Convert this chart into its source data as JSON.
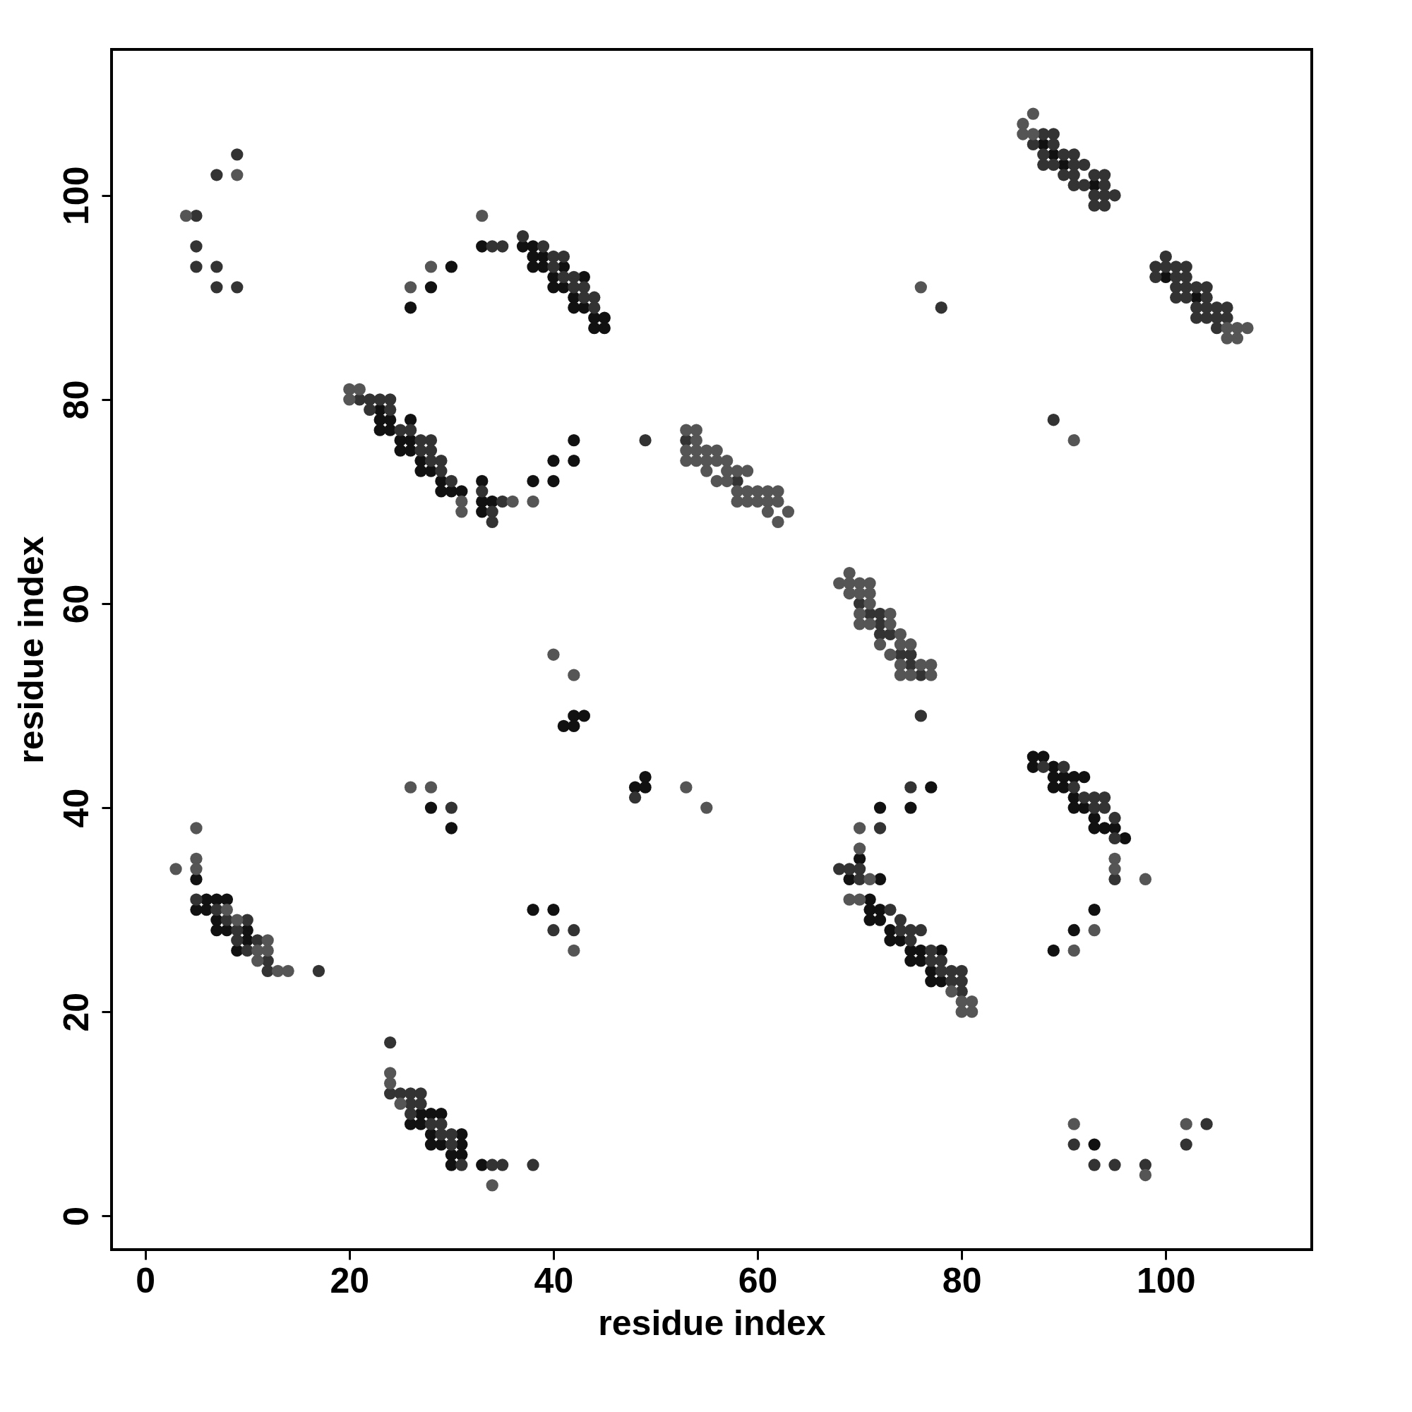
{
  "chart_data": {
    "type": "scatter",
    "xlabel": "residue index",
    "ylabel": "residue index",
    "xlim": [
      -3.3,
      114.3
    ],
    "ylim": [
      -3.3,
      114.3
    ],
    "xticks": [
      0,
      20,
      40,
      60,
      80,
      100
    ],
    "yticks": [
      0,
      20,
      40,
      60,
      80,
      100
    ],
    "grid": false,
    "marker": "circle",
    "series": [
      {
        "color": "#111111",
        "x": [
          26,
          28,
          30,
          33,
          37,
          38,
          38,
          38,
          39,
          39,
          40,
          40,
          41,
          41,
          42,
          42,
          43,
          43,
          44,
          44,
          45,
          45,
          23,
          23,
          23,
          24,
          24,
          25,
          25,
          26,
          26,
          26,
          27,
          27,
          28,
          29,
          29,
          30,
          31,
          33,
          33,
          33,
          34,
          38,
          40,
          40,
          42,
          42,
          88,
          89,
          90,
          93,
          100,
          103,
          41,
          42,
          42,
          43,
          28,
          30,
          48,
          49,
          49,
          72,
          75,
          77,
          70,
          69,
          72,
          71,
          71,
          71,
          72,
          72,
          73,
          73,
          74,
          75,
          75,
          76,
          76,
          77,
          77,
          78,
          78,
          87,
          87,
          88,
          89,
          89,
          89,
          90,
          90,
          91,
          91,
          91,
          92,
          92,
          93,
          93,
          94,
          95,
          96,
          93,
          91,
          89,
          93,
          5,
          5,
          6,
          6,
          7,
          7,
          7,
          8,
          8,
          9,
          10,
          10,
          38,
          40,
          26,
          27,
          27,
          28,
          28,
          28,
          29,
          29,
          30,
          30,
          31,
          31,
          31,
          33
        ],
        "values": [
          89,
          91,
          93,
          95,
          95,
          95,
          94,
          93,
          94,
          93,
          92,
          91,
          93,
          91,
          90,
          89,
          92,
          89,
          88,
          87,
          88,
          87,
          79,
          78,
          77,
          78,
          77,
          76,
          75,
          78,
          76,
          75,
          74,
          73,
          73,
          72,
          71,
          71,
          71,
          72,
          70,
          69,
          70,
          72,
          74,
          72,
          76,
          74,
          105,
          104,
          103,
          101,
          92,
          90,
          48,
          49,
          48,
          49,
          40,
          38,
          42,
          43,
          42,
          40,
          40,
          42,
          35,
          33,
          33,
          31,
          30,
          29,
          30,
          29,
          28,
          27,
          27,
          26,
          25,
          26,
          25,
          24,
          23,
          26,
          23,
          45,
          44,
          45,
          44,
          43,
          42,
          43,
          42,
          43,
          41,
          40,
          43,
          40,
          39,
          38,
          38,
          38,
          37,
          30,
          28,
          26,
          7,
          33,
          30,
          31,
          30,
          31,
          29,
          28,
          31,
          28,
          26,
          28,
          27,
          30,
          30,
          9,
          10,
          9,
          10,
          8,
          7,
          10,
          7,
          6,
          5,
          8,
          7,
          6,
          5
        ]
      },
      {
        "color": "#333333",
        "x": [
          5,
          5,
          5,
          7,
          7,
          7,
          9,
          9,
          34,
          35,
          37,
          39,
          40,
          40,
          41,
          41,
          42,
          42,
          43,
          43,
          44,
          44,
          21,
          22,
          22,
          23,
          24,
          24,
          25,
          26,
          27,
          27,
          28,
          28,
          28,
          29,
          29,
          30,
          33,
          34,
          34,
          35,
          49,
          53,
          58,
          87,
          88,
          88,
          88,
          89,
          89,
          89,
          90,
          90,
          91,
          91,
          91,
          91,
          92,
          92,
          93,
          93,
          93,
          94,
          94,
          94,
          94,
          95,
          99,
          99,
          100,
          100,
          101,
          101,
          101,
          101,
          102,
          102,
          102,
          102,
          103,
          103,
          103,
          104,
          104,
          104,
          104,
          105,
          105,
          105,
          106,
          106,
          78,
          89,
          70,
          71,
          72,
          72,
          72,
          73,
          74,
          75,
          75,
          76,
          76,
          30,
          48,
          72,
          75,
          68,
          69,
          70,
          70,
          73,
          74,
          74,
          75,
          75,
          76,
          77,
          77,
          78,
          78,
          79,
          79,
          80,
          80,
          80,
          88,
          90,
          91,
          92,
          93,
          93,
          94,
          94,
          95,
          95,
          95,
          91,
          93,
          95,
          98,
          102,
          104,
          5,
          7,
          8,
          9,
          9,
          10,
          10,
          11,
          12,
          12,
          17,
          40,
          42,
          24,
          24,
          25,
          26,
          26,
          26,
          27,
          27,
          28,
          29,
          29,
          30,
          30,
          31,
          34,
          35,
          38
        ],
        "values": [
          98,
          95,
          93,
          102,
          93,
          91,
          104,
          91,
          95,
          95,
          96,
          95,
          94,
          93,
          94,
          92,
          92,
          91,
          91,
          90,
          90,
          89,
          80,
          80,
          79,
          80,
          80,
          79,
          77,
          77,
          76,
          75,
          76,
          75,
          74,
          74,
          73,
          72,
          71,
          69,
          68,
          70,
          76,
          76,
          72,
          105,
          106,
          104,
          103,
          106,
          105,
          103,
          104,
          102,
          104,
          103,
          102,
          101,
          103,
          101,
          102,
          100,
          99,
          102,
          101,
          100,
          99,
          100,
          93,
          92,
          94,
          93,
          93,
          92,
          91,
          90,
          93,
          92,
          91,
          90,
          91,
          89,
          88,
          91,
          90,
          89,
          88,
          89,
          88,
          87,
          89,
          88,
          89,
          78,
          60,
          59,
          59,
          58,
          57,
          57,
          55,
          55,
          54,
          53,
          49,
          40,
          41,
          38,
          42,
          34,
          34,
          34,
          33,
          30,
          29,
          28,
          28,
          27,
          28,
          26,
          25,
          25,
          24,
          24,
          23,
          24,
          23,
          22,
          44,
          44,
          42,
          41,
          41,
          40,
          41,
          40,
          39,
          37,
          33,
          7,
          5,
          5,
          5,
          7,
          9,
          31,
          30,
          29,
          28,
          27,
          29,
          26,
          27,
          25,
          24,
          24,
          28,
          28,
          17,
          12,
          12,
          12,
          11,
          10,
          12,
          11,
          9,
          9,
          8,
          8,
          7,
          5,
          5,
          5,
          5
        ]
      },
      {
        "color": "#555555",
        "x": [
          4,
          9,
          26,
          28,
          33,
          20,
          20,
          21,
          31,
          31,
          36,
          38,
          53,
          53,
          53,
          54,
          54,
          54,
          54,
          55,
          55,
          55,
          56,
          56,
          56,
          57,
          57,
          57,
          58,
          58,
          58,
          59,
          59,
          59,
          60,
          60,
          61,
          61,
          61,
          62,
          62,
          62,
          63,
          86,
          86,
          87,
          87,
          106,
          106,
          107,
          107,
          108,
          76,
          91,
          68,
          69,
          69,
          69,
          70,
          70,
          70,
          70,
          71,
          71,
          71,
          71,
          72,
          73,
          73,
          73,
          74,
          74,
          74,
          74,
          75,
          75,
          76,
          77,
          77,
          40,
          42,
          26,
          28,
          53,
          55,
          70,
          70,
          71,
          69,
          70,
          79,
          80,
          80,
          81,
          81,
          95,
          95,
          98,
          93,
          91,
          91,
          98,
          102,
          3,
          5,
          5,
          5,
          8,
          9,
          11,
          11,
          12,
          12,
          13,
          14,
          42,
          24,
          24,
          25,
          34
        ],
        "values": [
          98,
          102,
          91,
          93,
          98,
          81,
          80,
          81,
          70,
          69,
          70,
          70,
          77,
          75,
          74,
          77,
          76,
          75,
          74,
          75,
          74,
          73,
          75,
          74,
          72,
          74,
          73,
          72,
          73,
          71,
          70,
          73,
          71,
          70,
          71,
          70,
          71,
          70,
          69,
          71,
          70,
          68,
          69,
          107,
          106,
          108,
          106,
          87,
          86,
          87,
          86,
          87,
          91,
          76,
          62,
          63,
          62,
          61,
          62,
          61,
          59,
          58,
          62,
          61,
          60,
          58,
          56,
          59,
          58,
          55,
          57,
          56,
          54,
          53,
          56,
          53,
          54,
          54,
          53,
          55,
          53,
          42,
          42,
          42,
          40,
          38,
          36,
          33,
          31,
          31,
          22,
          21,
          20,
          21,
          20,
          35,
          34,
          33,
          28,
          26,
          9,
          4,
          9,
          34,
          38,
          35,
          34,
          30,
          29,
          26,
          25,
          27,
          26,
          24,
          24,
          26,
          14,
          13,
          11,
          3
        ]
      }
    ]
  }
}
